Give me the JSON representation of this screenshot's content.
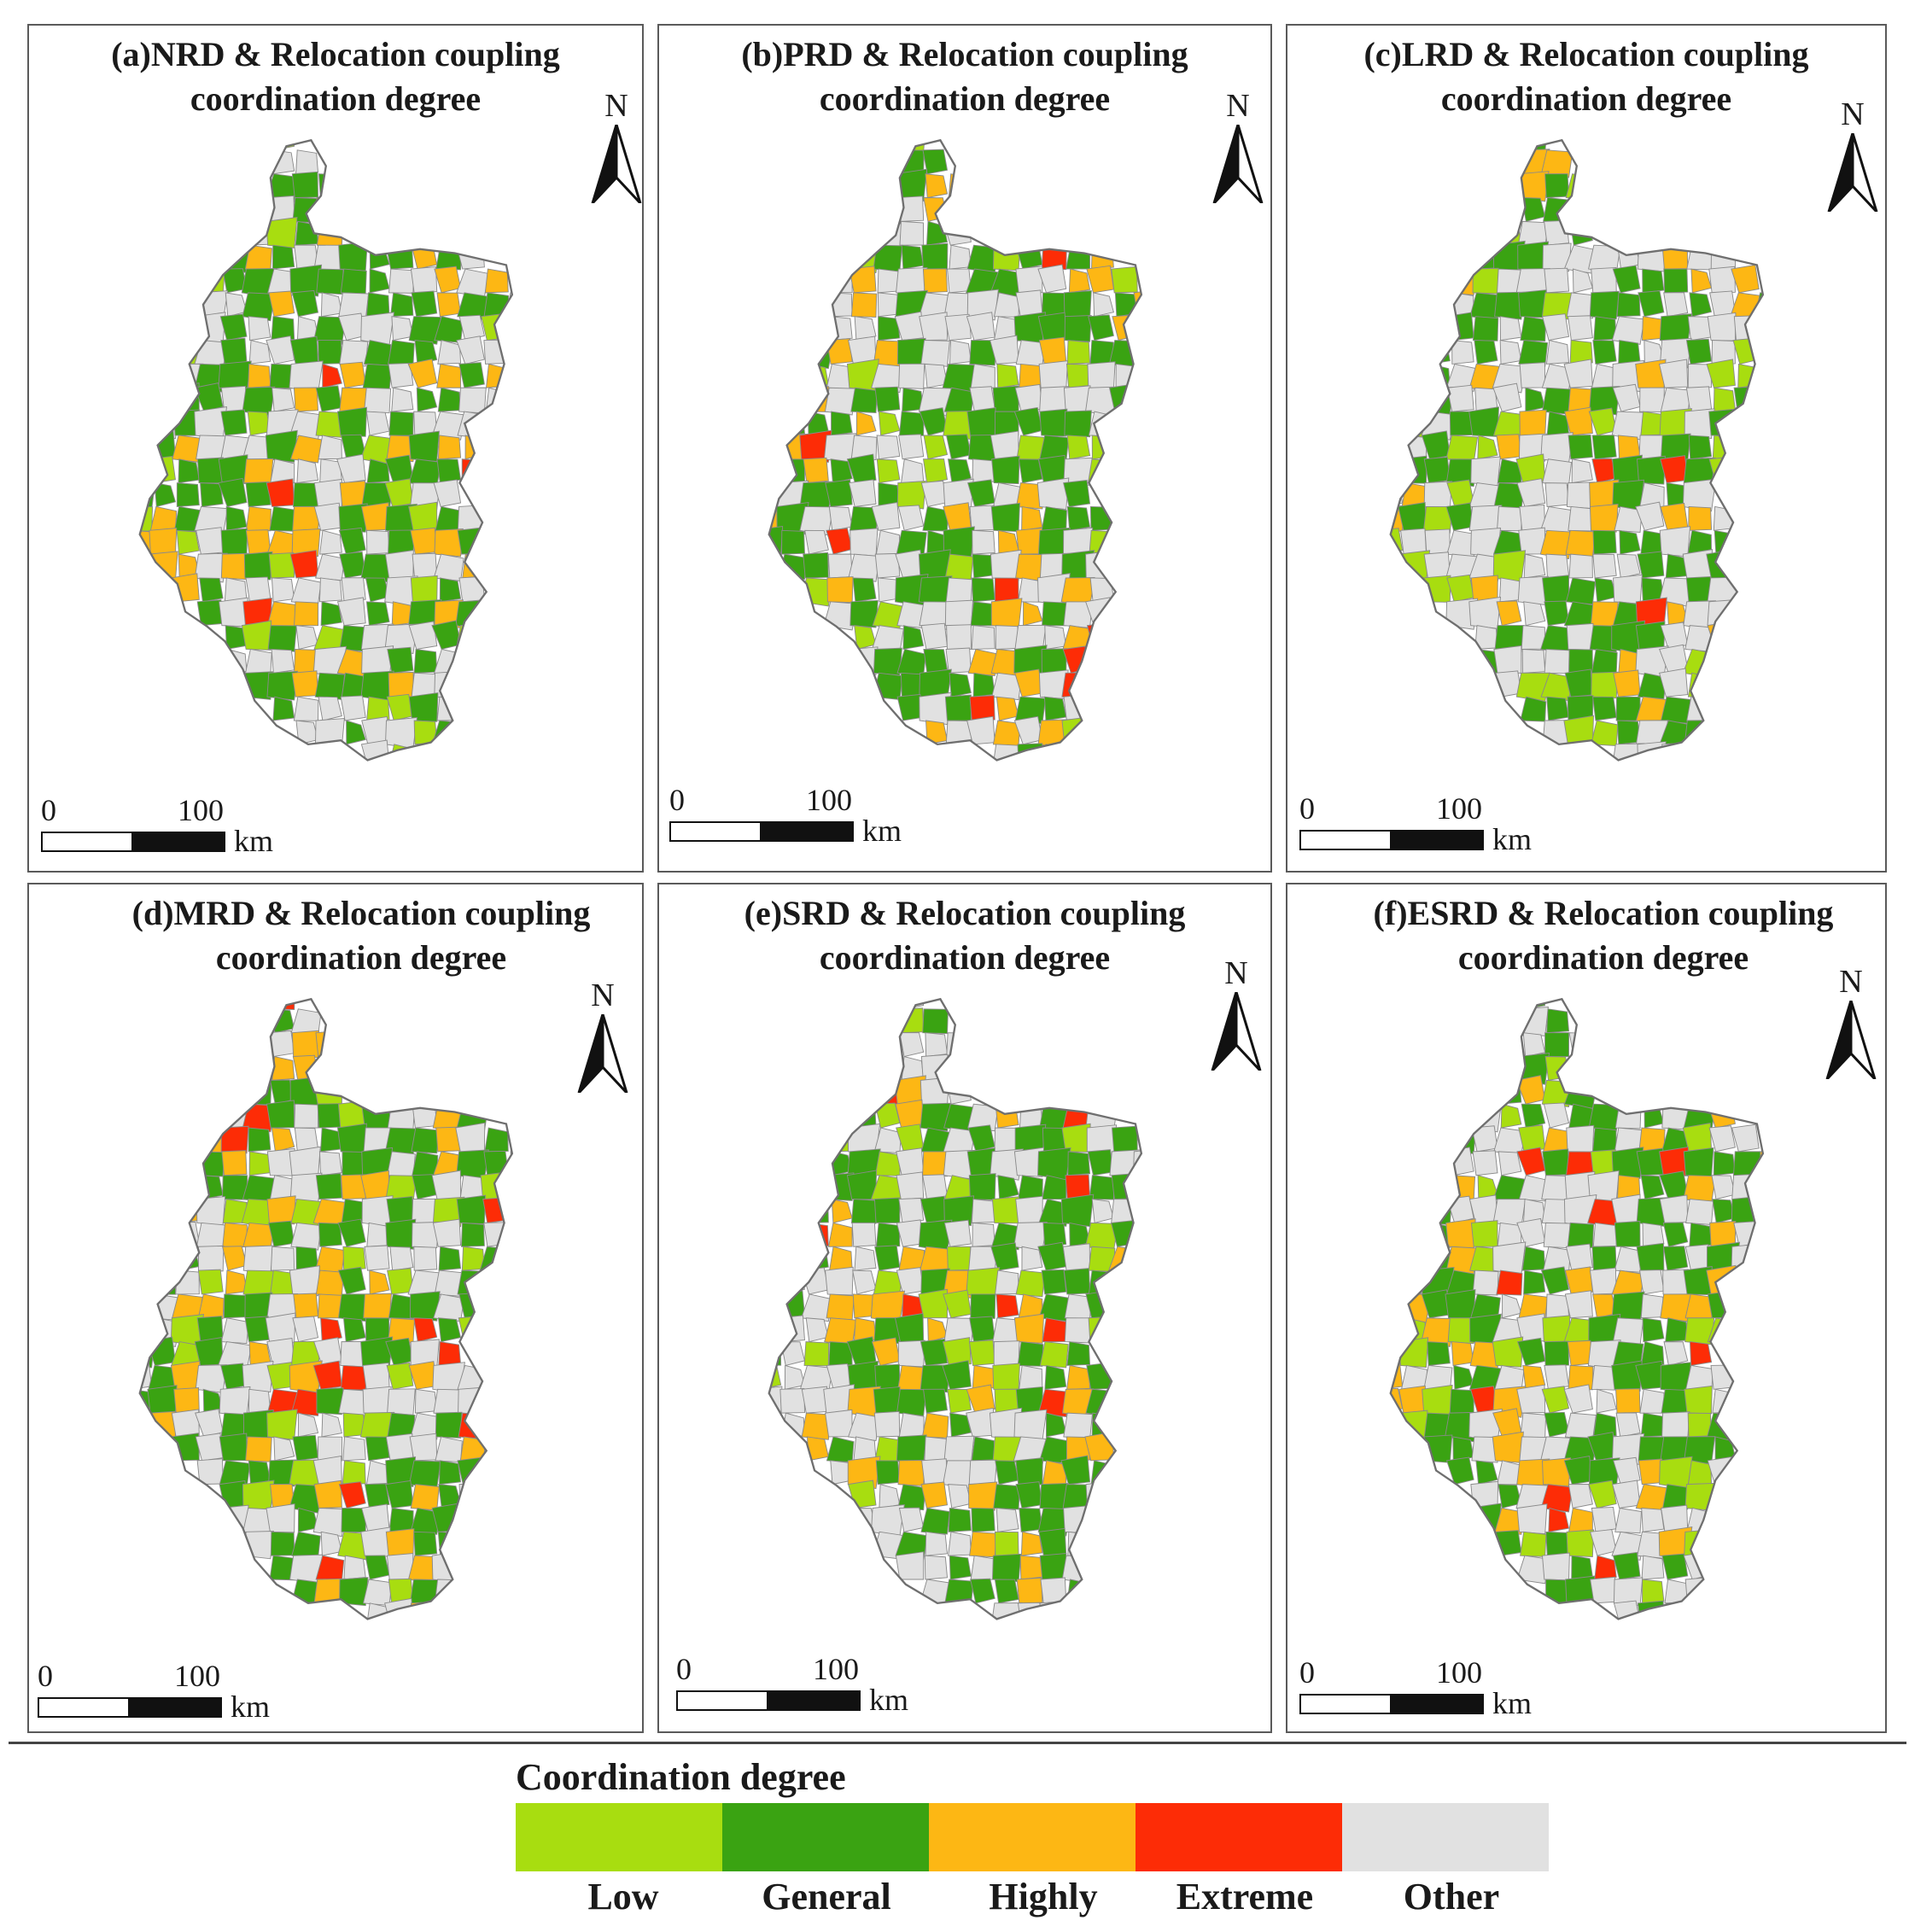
{
  "panels": [
    {
      "label": "(a)NRD & Relocation coupling\ncoordination degree",
      "seed": 11
    },
    {
      "label": "(b)PRD & Relocation coupling\ncoordination degree",
      "seed": 23
    },
    {
      "label": "(c)LRD & Relocation coupling\ncoordination degree",
      "seed": 37
    },
    {
      "label": "(d)MRD & Relocation coupling\ncoordination degree",
      "seed": 41
    },
    {
      "label": "(e)SRD & Relocation coupling\ncoordination degree",
      "seed": 53
    },
    {
      "label": "(f)ESRD & Relocation coupling\ncoordination degree",
      "seed": 67
    }
  ],
  "north_label": "N",
  "scale": {
    "start": "0",
    "end": "100",
    "unit": "km"
  },
  "legend": {
    "title": "Coordination degree",
    "items": [
      {
        "label": "Low",
        "color": "#a8dd10"
      },
      {
        "label": "General",
        "color": "#3aa312"
      },
      {
        "label": "Highly",
        "color": "#fdb714"
      },
      {
        "label": "Extreme",
        "color": "#fd2c06"
      },
      {
        "label": "Other",
        "color": "#e1e1e1"
      }
    ]
  }
}
